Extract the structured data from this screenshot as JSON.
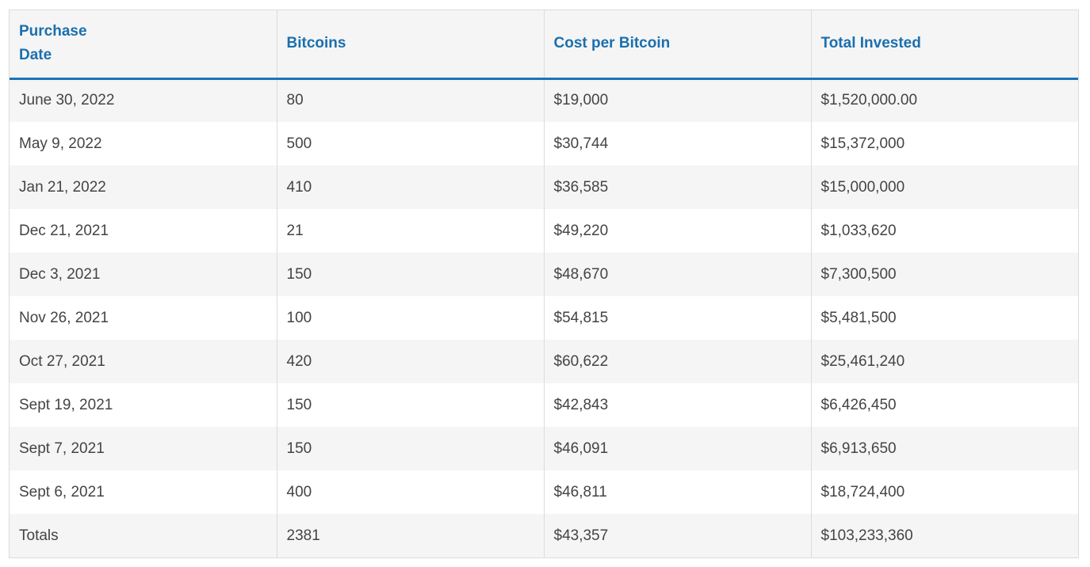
{
  "table": {
    "headers": [
      "Purchase Date",
      "Bitcoins",
      "Cost per Bitcoin",
      "Total Invested"
    ],
    "rows": [
      [
        "June 30, 2022",
        "80",
        "$19,000",
        "$1,520,000.00"
      ],
      [
        "May 9, 2022",
        "500",
        "$30,744",
        "$15,372,000"
      ],
      [
        "Jan 21, 2022",
        "410",
        "$36,585",
        "$15,000,000"
      ],
      [
        "Dec 21, 2021",
        "21",
        "$49,220",
        "$1,033,620"
      ],
      [
        "Dec 3, 2021",
        "150",
        "$48,670",
        "$7,300,500"
      ],
      [
        "Nov 26, 2021",
        "100",
        "$54,815",
        "$5,481,500"
      ],
      [
        "Oct 27, 2021",
        "420",
        "$60,622",
        "$25,461,240"
      ],
      [
        "Sept 19, 2021",
        "150",
        "$42,843",
        "$6,426,450"
      ],
      [
        "Sept 7, 2021",
        "150",
        "$46,091",
        "$6,913,650"
      ],
      [
        "Sept 6, 2021",
        "400",
        "$46,811",
        "$18,724,400"
      ],
      [
        "Totals",
        "2381",
        "$43,357",
        "$103,233,360"
      ]
    ]
  },
  "colors": {
    "header_text": "#1b6fae",
    "header_rule": "#1a75b5",
    "stripe": "#f5f5f5",
    "body_text": "#444444"
  }
}
